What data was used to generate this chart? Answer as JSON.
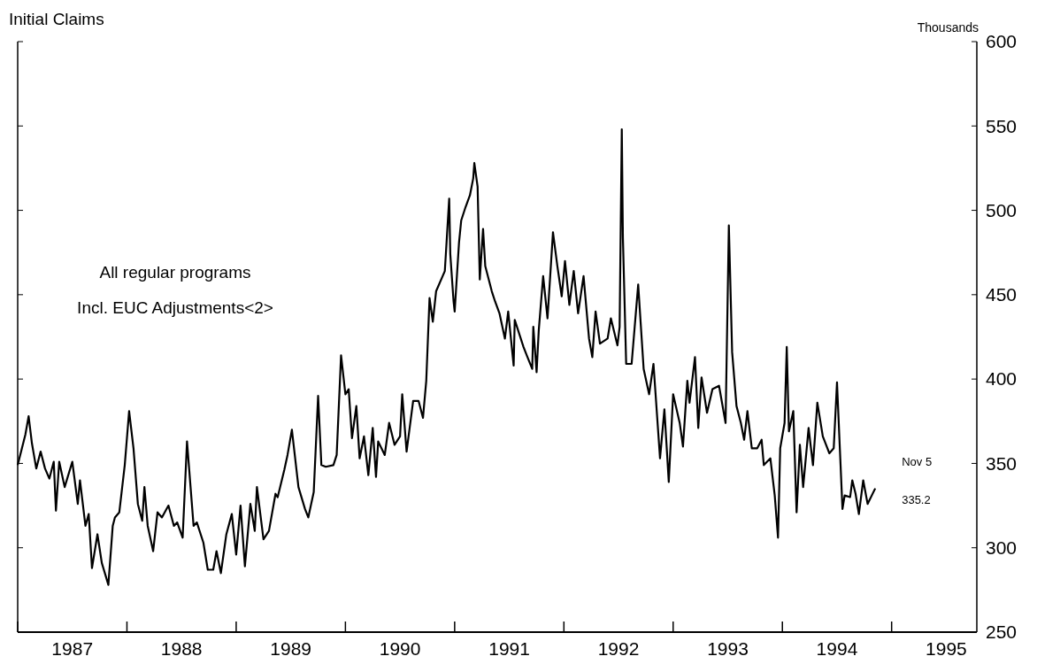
{
  "chart_data": {
    "type": "line",
    "title": "Initial Claims",
    "ylabel": "Thousands",
    "annotations": [
      "All regular programs",
      "Incl. EUC Adjustments<2>",
      "Nov 5",
      "335.2"
    ],
    "xlim": [
      1987,
      1995.78
    ],
    "ylim": [
      250,
      600
    ],
    "yticks": [
      250,
      300,
      350,
      400,
      450,
      500,
      550,
      600
    ],
    "xticks": [
      {
        "value": 1987,
        "label": null
      },
      {
        "value": 1987.5,
        "label": "1987"
      },
      {
        "value": 1988,
        "label": null
      },
      {
        "value": 1988.5,
        "label": "1988"
      },
      {
        "value": 1989,
        "label": null
      },
      {
        "value": 1989.5,
        "label": "1989"
      },
      {
        "value": 1990,
        "label": null
      },
      {
        "value": 1990.5,
        "label": "1990"
      },
      {
        "value": 1991,
        "label": null
      },
      {
        "value": 1991.5,
        "label": "1991"
      },
      {
        "value": 1992,
        "label": null
      },
      {
        "value": 1992.5,
        "label": "1992"
      },
      {
        "value": 1993,
        "label": null
      },
      {
        "value": 1993.5,
        "label": "1993"
      },
      {
        "value": 1994,
        "label": null
      },
      {
        "value": 1994.5,
        "label": "1994"
      },
      {
        "value": 1995,
        "label": null
      },
      {
        "value": 1995.5,
        "label": "1995"
      }
    ],
    "grid": false,
    "series": [
      {
        "color": "#000000",
        "x": [
          1987.0,
          1987.07,
          1987.1,
          1987.13,
          1987.17,
          1987.21,
          1987.25,
          1987.29,
          1987.33,
          1987.35,
          1987.38,
          1987.43,
          1987.5,
          1987.55,
          1987.57,
          1987.62,
          1987.65,
          1987.68,
          1987.73,
          1987.77,
          1987.83,
          1987.87,
          1987.89,
          1987.93,
          1987.98,
          1988.02,
          1988.06,
          1988.1,
          1988.14,
          1988.16,
          1988.19,
          1988.24,
          1988.28,
          1988.32,
          1988.38,
          1988.43,
          1988.46,
          1988.51,
          1988.55,
          1988.61,
          1988.64,
          1988.7,
          1988.74,
          1988.79,
          1988.82,
          1988.86,
          1988.91,
          1988.96,
          1989.0,
          1989.04,
          1989.08,
          1989.13,
          1989.17,
          1989.19,
          1989.25,
          1989.3,
          1989.36,
          1989.38,
          1989.44,
          1989.47,
          1989.51,
          1989.57,
          1989.63,
          1989.66,
          1989.71,
          1989.75,
          1989.78,
          1989.82,
          1989.89,
          1989.92,
          1989.96,
          1990.0,
          1990.03,
          1990.06,
          1990.1,
          1990.13,
          1990.17,
          1990.21,
          1990.25,
          1990.28,
          1990.3,
          1990.36,
          1990.4,
          1990.45,
          1990.5,
          1990.52,
          1990.56,
          1990.62,
          1990.67,
          1990.71,
          1990.74,
          1990.77,
          1990.8,
          1990.83,
          1990.89,
          1990.91,
          1990.95,
          1990.96,
          1990.99,
          1991.0,
          1991.04,
          1991.06,
          1991.1,
          1991.14,
          1991.17,
          1991.18,
          1991.21,
          1991.23,
          1991.26,
          1991.28,
          1991.34,
          1991.37,
          1991.41,
          1991.46,
          1991.49,
          1991.54,
          1991.55,
          1991.63,
          1991.66,
          1991.71,
          1991.72,
          1991.75,
          1991.77,
          1991.81,
          1991.85,
          1991.9,
          1991.94,
          1991.98,
          1992.01,
          1992.05,
          1992.09,
          1992.13,
          1992.18,
          1992.23,
          1992.26,
          1992.29,
          1992.33,
          1992.4,
          1992.43,
          1992.49,
          1992.51,
          1992.53,
          1992.54,
          1992.57,
          1992.62,
          1992.68,
          1992.73,
          1992.78,
          1992.82,
          1992.88,
          1992.92,
          1992.96,
          1993.0,
          1993.06,
          1993.09,
          1993.13,
          1993.15,
          1993.2,
          1993.23,
          1993.26,
          1993.31,
          1993.36,
          1993.42,
          1993.48,
          1993.51,
          1993.54,
          1993.58,
          1993.62,
          1993.65,
          1993.68,
          1993.72,
          1993.77,
          1993.81,
          1993.83,
          1993.89,
          1993.93,
          1993.96,
          1993.98,
          1994.02,
          1994.04,
          1994.06,
          1994.1,
          1994.13,
          1994.16,
          1994.19,
          1994.24,
          1994.28,
          1994.32,
          1994.37,
          1994.43,
          1994.47,
          1994.5,
          1994.53,
          1994.55,
          1994.57,
          1994.62,
          1994.64,
          1994.67,
          1994.7,
          1994.74,
          1994.78,
          1994.85
        ],
        "values": [
          349,
          367,
          378,
          362,
          347,
          357,
          347,
          341,
          351,
          322,
          351,
          336,
          351,
          326,
          340,
          313,
          320,
          288,
          308,
          291,
          278,
          313,
          318,
          321,
          349,
          381,
          359,
          326,
          316,
          336,
          313,
          298,
          321,
          318,
          325,
          313,
          315,
          306,
          363,
          313,
          315,
          303,
          287,
          287,
          298,
          285,
          308,
          320,
          296,
          325,
          289,
          326,
          310,
          336,
          305,
          310,
          332,
          330,
          346,
          355,
          370,
          336,
          323,
          318,
          333,
          390,
          349,
          348,
          349,
          355,
          414,
          391,
          394,
          365,
          384,
          353,
          366,
          343,
          371,
          342,
          363,
          355,
          374,
          361,
          366,
          391,
          357,
          387,
          387,
          377,
          399,
          448,
          434,
          452,
          461,
          464,
          507,
          474,
          446,
          440,
          481,
          494,
          502,
          509,
          519,
          528,
          514,
          459,
          489,
          467,
          452,
          446,
          439,
          424,
          440,
          408,
          435,
          419,
          414,
          406,
          431,
          404,
          429,
          461,
          436,
          487,
          467,
          449,
          470,
          444,
          464,
          439,
          461,
          424,
          413,
          440,
          421,
          424,
          436,
          420,
          431,
          548,
          484,
          409,
          409,
          456,
          406,
          391,
          409,
          353,
          382,
          339,
          391,
          374,
          360,
          399,
          386,
          413,
          371,
          401,
          380,
          394,
          396,
          374,
          491,
          416,
          384,
          374,
          364,
          381,
          359,
          359,
          364,
          349,
          353,
          331,
          306,
          359,
          374,
          419,
          369,
          381,
          321,
          361,
          336,
          371,
          349,
          386,
          366,
          356,
          359,
          398,
          353,
          323,
          331,
          330,
          340,
          332,
          320,
          340,
          326,
          335.2
        ]
      }
    ]
  }
}
